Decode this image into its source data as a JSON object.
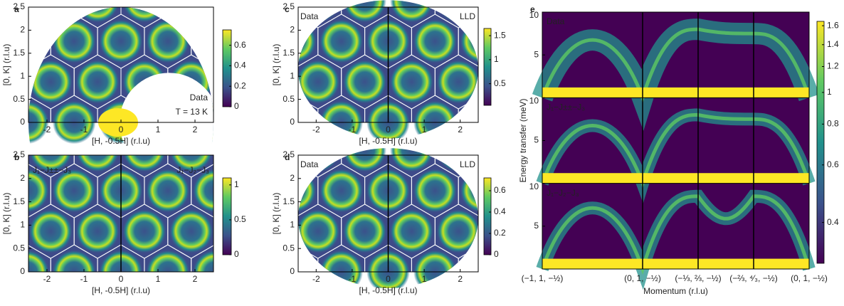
{
  "chart_data": [
    {
      "type": "heatmap",
      "panel": "a",
      "xlabel": "[H, -0.5H] (r.l.u)",
      "ylabel": "[0, K] (r.l.u)",
      "xlim": [
        -2.5,
        2.5
      ],
      "xticks": [
        -2,
        -1,
        0,
        1,
        2
      ],
      "ylim": [
        0,
        2.5
      ],
      "yticks": [
        0,
        0.5,
        1,
        1.5,
        2,
        2.5
      ],
      "clim": [
        0,
        0.75
      ],
      "cticks": [
        0,
        0.2,
        0.4,
        0.6
      ],
      "annotations": [
        "Data",
        "T = 13 K"
      ]
    },
    {
      "type": "heatmap",
      "panel": "b",
      "xlabel": "[H, -0.5H] (r.l.u)",
      "ylabel": "[0, K] (r.l.u)",
      "xlim": [
        -2.5,
        2.5
      ],
      "xticks": [
        -2,
        -1,
        0,
        1,
        2
      ],
      "ylim": [
        0,
        2.5
      ],
      "yticks": [
        0,
        0.5,
        1,
        1.5,
        2,
        2.5
      ],
      "clim": [
        0,
        1.1
      ],
      "cticks": [
        0,
        0.5,
        1
      ],
      "annotations": [
        "J₁−J±±−J₃",
        "J₁−J₂−J₃"
      ]
    },
    {
      "type": "heatmap",
      "panel": "c",
      "xlabel": "[H, -0.5H] (r.l.u)",
      "ylabel": "[0, K] (r.l.u)",
      "xlim": [
        -2.5,
        2.5
      ],
      "xticks": [
        -2,
        -1,
        0,
        1,
        2
      ],
      "ylim": [
        0,
        2.5
      ],
      "yticks": [
        0,
        0.5,
        1,
        1.5,
        2,
        2.5
      ],
      "clim": [
        0.05,
        1.65
      ],
      "cticks": [
        0.5,
        1,
        1.5
      ],
      "annotations": [
        "Data",
        "LLD"
      ]
    },
    {
      "type": "heatmap",
      "panel": "d",
      "xlabel": "[H, -0.5H] (r.l.u)",
      "ylabel": "[0, K] (r.l.u)",
      "xlim": [
        -2.5,
        2.5
      ],
      "xticks": [
        -2,
        -1,
        0,
        1,
        2
      ],
      "ylim": [
        0,
        2.5
      ],
      "yticks": [
        0,
        0.5,
        1,
        1.5,
        2,
        2.5
      ],
      "clim": [
        0,
        0.72
      ],
      "cticks": [
        0,
        0.2,
        0.4,
        0.6
      ],
      "annotations": [
        "Data",
        "LLD"
      ]
    },
    {
      "type": "spectrum",
      "panel": "e",
      "xlabel": "Momentum (r.l.u)",
      "ylabel": "Energy transfer (meV)",
      "categories": [
        "(−1, 1, −½)",
        "(0, 1, −½)",
        "(−⅓, ⅔, −½)",
        "(−⅔, ⁴⁄₃, −½)",
        "(0, 1, −½)"
      ],
      "subpanels": [
        "Data",
        "J₁−J±±−J₃",
        "J₁−J₂−J₃"
      ],
      "ylim": [
        0,
        10
      ],
      "yticks": [
        5,
        10
      ],
      "clim": [
        0.3,
        1.65
      ],
      "clog": true,
      "cticks": [
        0.4,
        0.6,
        0.8,
        1,
        1.2,
        1.4,
        1.6
      ]
    }
  ]
}
